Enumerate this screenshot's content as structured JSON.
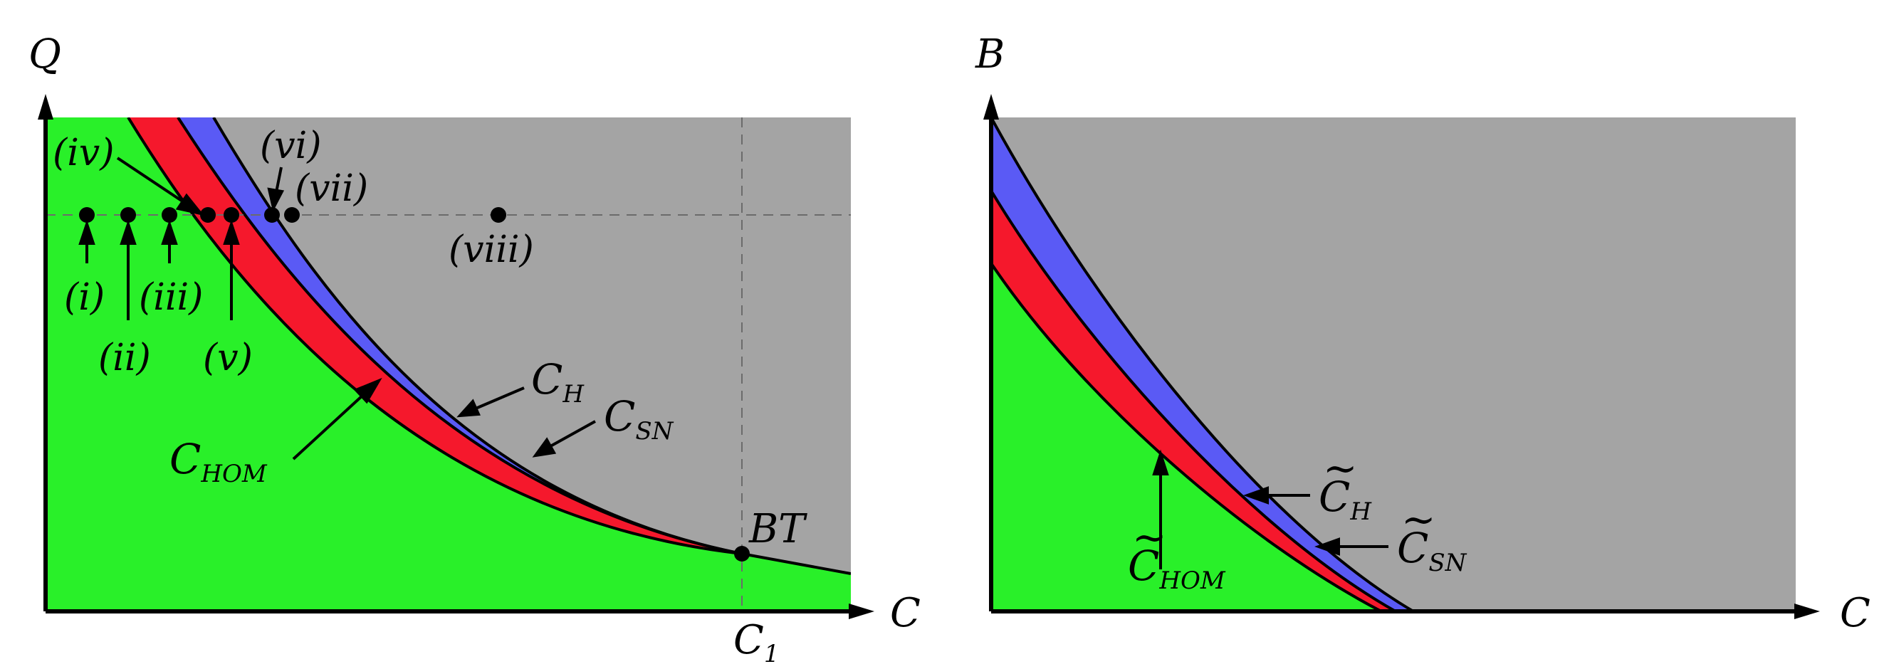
{
  "colors": {
    "green": "#29f029",
    "red": "#f5182c",
    "blue": "#5a5af5",
    "gray": "#a4a4a4",
    "black": "#000000",
    "dashed": "#6b6b6b"
  },
  "left_panel": {
    "y_axis_label": "Q",
    "x_axis_label": "C",
    "c1": {
      "main": "C",
      "sub": "1"
    },
    "bt_label": "BT",
    "curves": {
      "hom": {
        "main": "C",
        "sub": "HOM"
      },
      "h": {
        "main": "C",
        "sub": "H"
      },
      "sn": {
        "main": "C",
        "sub": "SN"
      }
    },
    "points": [
      {
        "id": "i",
        "label": "(i)"
      },
      {
        "id": "ii",
        "label": "(ii)"
      },
      {
        "id": "iii",
        "label": "(iii)"
      },
      {
        "id": "iv",
        "label": "(iv)"
      },
      {
        "id": "v",
        "label": "(v)"
      },
      {
        "id": "vi",
        "label": "(vi)"
      },
      {
        "id": "vii",
        "label": "(vii)"
      },
      {
        "id": "viii",
        "label": "(viii)"
      }
    ]
  },
  "right_panel": {
    "y_axis_label": "B",
    "x_axis_label": "C",
    "curves": {
      "hom": {
        "main": "C",
        "tilde": "~",
        "sub": "HOM"
      },
      "h": {
        "main": "C",
        "tilde": "~",
        "sub": "H"
      },
      "sn": {
        "main": "C",
        "tilde": "~",
        "sub": "SN"
      }
    }
  }
}
